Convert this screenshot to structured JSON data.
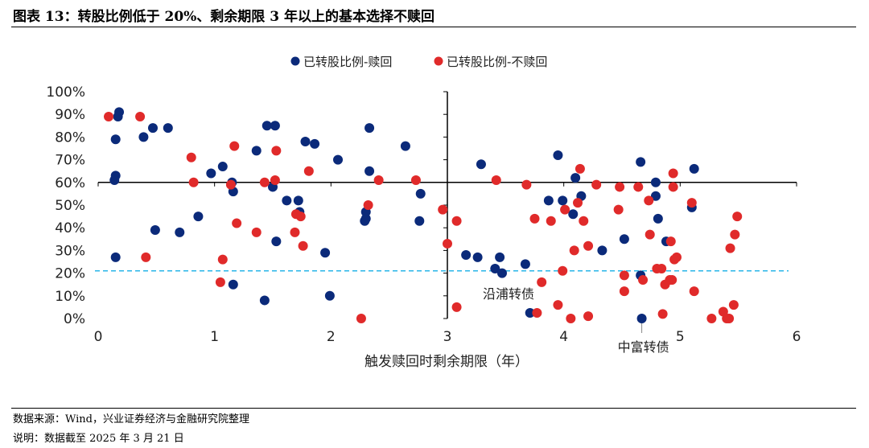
{
  "title": "图表 13：转股比例低于 20%、剩余期限 3 年以上的基本选择不赎回",
  "footer": {
    "source": "数据来源：Wind，兴业证券经济与金融研究院整理",
    "note": "说明：数据截至 2025 年 3 月 21 日"
  },
  "chart_data": {
    "type": "scatter",
    "xlabel": "触发赎回时剩余期限（年）",
    "ylabel": "",
    "xlim": [
      0,
      6
    ],
    "ylim": [
      0,
      100
    ],
    "x_ticks": [
      "0",
      "1",
      "2",
      "3",
      "4",
      "5",
      "6"
    ],
    "y_ticks": [
      "0%",
      "10%",
      "20%",
      "30%",
      "40%",
      "50%",
      "60%",
      "70%",
      "80%",
      "90%",
      "100%"
    ],
    "axes_cross": {
      "x": 3,
      "y": 60
    },
    "reference_line": {
      "y": 21,
      "style": "dashed",
      "color": "#29b6e8"
    },
    "legend_position": "top",
    "grid": false,
    "annotations": [
      {
        "text": "沿浦转债",
        "x": 3.47,
        "y": 20
      },
      {
        "text": "中富转债",
        "x": 4.67,
        "y": 0
      }
    ],
    "series": [
      {
        "name": "已转股比例-赎回",
        "color": "#0b2a7a",
        "points": [
          [
            0.18,
            91
          ],
          [
            0.17,
            89
          ],
          [
            0.15,
            79
          ],
          [
            0.15,
            63
          ],
          [
            0.14,
            61
          ],
          [
            0.15,
            27
          ],
          [
            0.39,
            80
          ],
          [
            0.47,
            84
          ],
          [
            0.6,
            84
          ],
          [
            0.49,
            39
          ],
          [
            0.7,
            38
          ],
          [
            0.86,
            45
          ],
          [
            0.97,
            64
          ],
          [
            1.07,
            67
          ],
          [
            1.15,
            60
          ],
          [
            1.16,
            56
          ],
          [
            1.16,
            15
          ],
          [
            1.36,
            74
          ],
          [
            1.45,
            85
          ],
          [
            1.52,
            85
          ],
          [
            1.5,
            58
          ],
          [
            1.53,
            34
          ],
          [
            1.43,
            8
          ],
          [
            1.62,
            52
          ],
          [
            1.72,
            52
          ],
          [
            1.73,
            47
          ],
          [
            1.78,
            78
          ],
          [
            1.86,
            77
          ],
          [
            2.06,
            70
          ],
          [
            1.95,
            29
          ],
          [
            1.99,
            10
          ],
          [
            2.33,
            84
          ],
          [
            2.33,
            65
          ],
          [
            2.3,
            47
          ],
          [
            2.3,
            44
          ],
          [
            2.29,
            43
          ],
          [
            2.64,
            76
          ],
          [
            2.77,
            55
          ],
          [
            2.76,
            43
          ],
          [
            3.29,
            68
          ],
          [
            3.95,
            72
          ],
          [
            4.1,
            62
          ],
          [
            4.15,
            54
          ],
          [
            3.87,
            52
          ],
          [
            3.99,
            52
          ],
          [
            4.08,
            46
          ],
          [
            4.66,
            69
          ],
          [
            4.79,
            60
          ],
          [
            4.79,
            54
          ],
          [
            4.81,
            44
          ],
          [
            5.12,
            66
          ],
          [
            5.1,
            49
          ],
          [
            4.52,
            35
          ],
          [
            4.88,
            34
          ],
          [
            4.33,
            30
          ],
          [
            3.16,
            28
          ],
          [
            3.26,
            27
          ],
          [
            3.45,
            27
          ],
          [
            3.41,
            22
          ],
          [
            3.47,
            20
          ],
          [
            3.67,
            24
          ],
          [
            4.66,
            19
          ],
          [
            3.71,
            2.5
          ],
          [
            4.67,
            0
          ]
        ]
      },
      {
        "name": "已转股比例-不赎回",
        "color": "#e02a2a",
        "points": [
          [
            0.09,
            89
          ],
          [
            0.36,
            89
          ],
          [
            0.8,
            71
          ],
          [
            0.82,
            60
          ],
          [
            0.41,
            27
          ],
          [
            1.07,
            26
          ],
          [
            1.05,
            16
          ],
          [
            1.14,
            59
          ],
          [
            1.17,
            76
          ],
          [
            1.19,
            42
          ],
          [
            1.36,
            38
          ],
          [
            1.43,
            60
          ],
          [
            1.53,
            74
          ],
          [
            1.52,
            61
          ],
          [
            1.69,
            38
          ],
          [
            1.7,
            46
          ],
          [
            1.74,
            45
          ],
          [
            1.76,
            32
          ],
          [
            1.81,
            65
          ],
          [
            2.26,
            0
          ],
          [
            2.32,
            50
          ],
          [
            2.41,
            61
          ],
          [
            2.73,
            61
          ],
          [
            2.96,
            48
          ],
          [
            3.08,
            43
          ],
          [
            3.0,
            33
          ],
          [
            3.08,
            5
          ],
          [
            3.42,
            61
          ],
          [
            3.68,
            59
          ],
          [
            4.14,
            66
          ],
          [
            4.28,
            59
          ],
          [
            4.48,
            58
          ],
          [
            4.64,
            58
          ],
          [
            4.94,
            64
          ],
          [
            4.94,
            58
          ],
          [
            4.12,
            51
          ],
          [
            4.01,
            48
          ],
          [
            3.75,
            44
          ],
          [
            3.89,
            43
          ],
          [
            4.17,
            43
          ],
          [
            4.47,
            48
          ],
          [
            4.73,
            52
          ],
          [
            5.1,
            51
          ],
          [
            5.49,
            45
          ],
          [
            5.47,
            37
          ],
          [
            5.43,
            31
          ],
          [
            4.74,
            37
          ],
          [
            4.92,
            34
          ],
          [
            4.21,
            32
          ],
          [
            4.09,
            30
          ],
          [
            4.97,
            27
          ],
          [
            4.95,
            26
          ],
          [
            4.8,
            22
          ],
          [
            4.84,
            22
          ],
          [
            3.99,
            21
          ],
          [
            4.52,
            19
          ],
          [
            4.68,
            17
          ],
          [
            3.81,
            16
          ],
          [
            4.91,
            17
          ],
          [
            4.93,
            17
          ],
          [
            4.87,
            15
          ],
          [
            4.52,
            12
          ],
          [
            5.12,
            12
          ],
          [
            3.95,
            6
          ],
          [
            3.77,
            2.5
          ],
          [
            4.06,
            0
          ],
          [
            4.21,
            1
          ],
          [
            4.85,
            2
          ],
          [
            5.27,
            0
          ],
          [
            5.37,
            3
          ],
          [
            5.4,
            0
          ],
          [
            5.42,
            0
          ],
          [
            5.46,
            6
          ]
        ]
      }
    ]
  }
}
